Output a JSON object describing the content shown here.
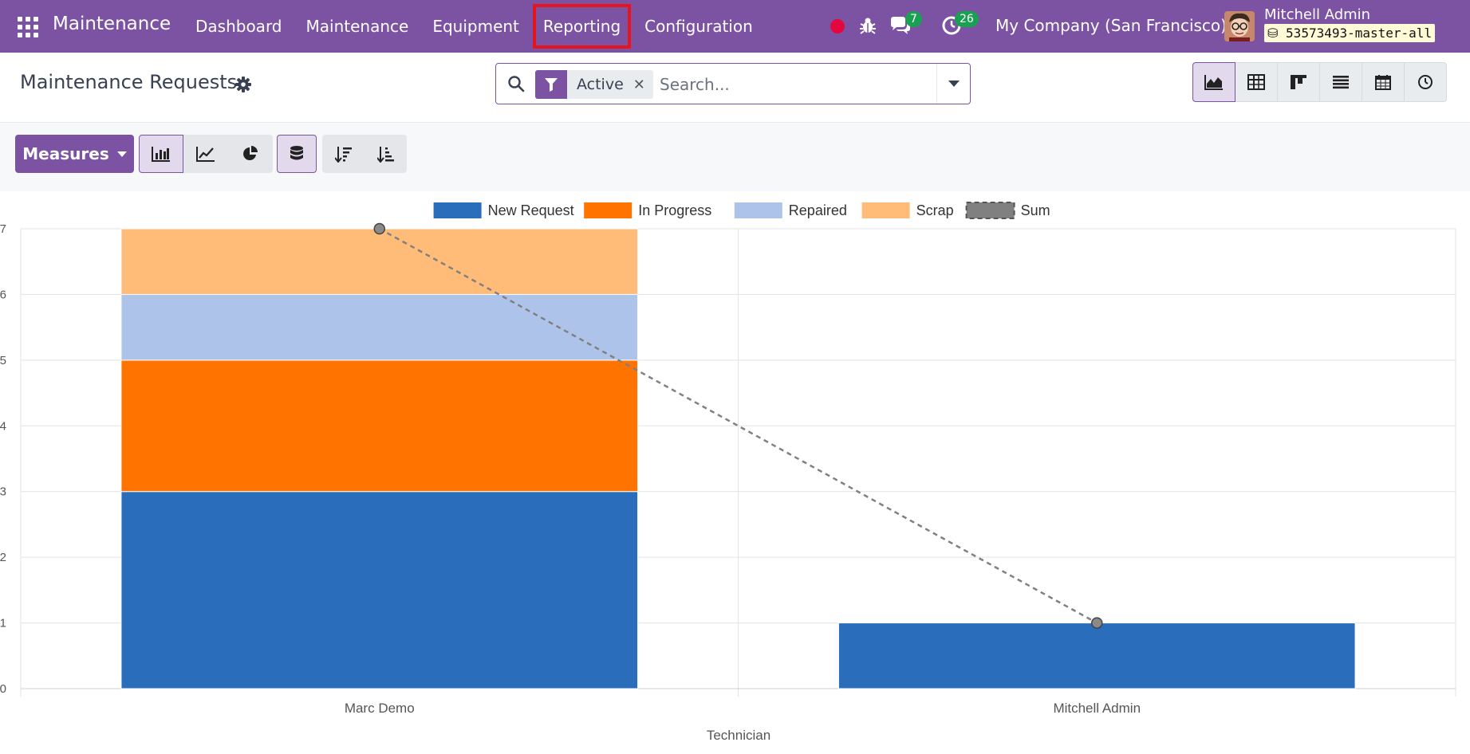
{
  "navbar": {
    "app_name": "Maintenance",
    "menu": [
      "Dashboard",
      "Maintenance",
      "Equipment",
      "Reporting",
      "Configuration"
    ],
    "highlighted_menu": "Reporting",
    "messages_count": "7",
    "activities_count": "26",
    "company": "My Company (San Francisco)",
    "user_name": "Mitchell Admin",
    "database": "53573493-master-all"
  },
  "control_panel": {
    "title": "Maintenance Requests",
    "search": {
      "facet_label": "Active",
      "placeholder": "Search..."
    },
    "views": [
      "graph-view",
      "pivot-view",
      "kanban-view",
      "list-view",
      "calendar-view",
      "activity-view"
    ],
    "active_view": "graph-view"
  },
  "toolbar": {
    "measures_label": "Measures",
    "chart_types": [
      "bar-chart",
      "line-chart",
      "pie-chart"
    ],
    "active_chart_type": "bar-chart",
    "stacked": true,
    "sort_buttons": [
      "sort-descending",
      "sort-ascending"
    ]
  },
  "colors": {
    "brand": "#7c52a3",
    "new_request": "#2a6ebb",
    "in_progress": "#ff7300",
    "repaired": "#aec3ea",
    "scrap": "#ffbb78",
    "sum": "#808080"
  },
  "chart_data": {
    "type": "bar",
    "stacked": true,
    "categories": [
      "Marc Demo",
      "Mitchell Admin"
    ],
    "xlabel": "Technician",
    "ylabel": "",
    "ylim": [
      0,
      7
    ],
    "yticks": [
      "0",
      "1",
      "2",
      "3",
      "4",
      "5",
      "6",
      "7"
    ],
    "series": [
      {
        "name": "New Request",
        "values": [
          3,
          1
        ],
        "color": "#2a6ebb"
      },
      {
        "name": "In Progress",
        "values": [
          2,
          0
        ],
        "color": "#ff7300"
      },
      {
        "name": "Repaired",
        "values": [
          1,
          0
        ],
        "color": "#aec3ea"
      },
      {
        "name": "Scrap",
        "values": [
          1,
          0
        ],
        "color": "#ffbb78"
      }
    ],
    "sum_line": {
      "name": "Sum",
      "values": [
        7,
        1
      ],
      "color": "#808080",
      "style": "dashed"
    },
    "legend_position": "top-center",
    "grid": true
  }
}
